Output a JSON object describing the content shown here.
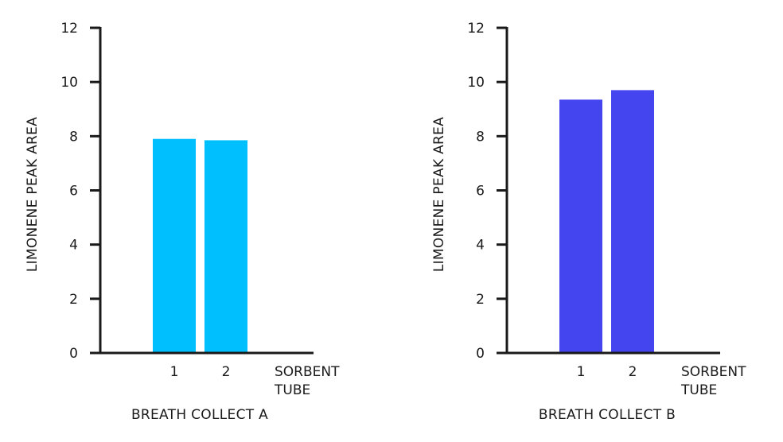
{
  "chart_data": [
    {
      "type": "bar",
      "caption": "BREATH COLLECT A",
      "ylabel": "LIMONENE PEAK AREA",
      "xnote": [
        "SORBENT",
        "TUBE"
      ],
      "categories": [
        "1",
        "2"
      ],
      "values": [
        7.9,
        7.85
      ],
      "ylim": [
        0,
        12
      ],
      "yticks": [
        0,
        2,
        4,
        6,
        8,
        10,
        12
      ],
      "color": "#00bfff",
      "grid": false,
      "legend": false
    },
    {
      "type": "bar",
      "caption": "BREATH COLLECT B",
      "ylabel": "LIMONENE PEAK AREA",
      "xnote": [
        "SORBENT",
        "TUBE"
      ],
      "categories": [
        "1",
        "2"
      ],
      "values": [
        9.35,
        9.7
      ],
      "ylim": [
        0,
        12
      ],
      "yticks": [
        0,
        2,
        4,
        6,
        8,
        10,
        12
      ],
      "color": "#4545f0",
      "grid": false,
      "legend": false
    }
  ]
}
